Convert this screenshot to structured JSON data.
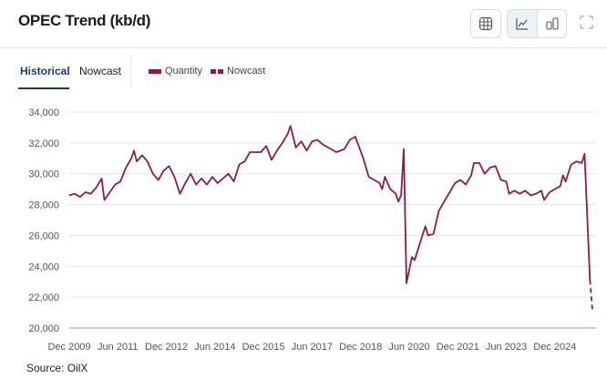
{
  "header": {
    "title": "OPEC Trend (kb/d)",
    "buttons": [
      {
        "icon": "table-icon"
      },
      {
        "icon": "line-chart-icon",
        "active": true
      },
      {
        "icon": "bar-chart-icon"
      },
      {
        "icon": "expand-icon"
      }
    ]
  },
  "tabs": [
    {
      "label": "Historical",
      "active": true
    },
    {
      "label": "Nowcast"
    }
  ],
  "legend": [
    {
      "label": "Quantity",
      "style": "solid"
    },
    {
      "label": "Nowcast",
      "style": "dashed"
    }
  ],
  "source": "Source: OilX",
  "colors": {
    "line": "#8e1b4c",
    "accent": "#1f3a6e"
  },
  "chart_data": {
    "type": "line",
    "ylim": [
      20000,
      34000
    ],
    "yticks": [
      20000,
      22000,
      24000,
      26000,
      28000,
      30000,
      32000,
      34000
    ],
    "ytick_labels": [
      "20,000",
      "22,000",
      "24,000",
      "26,000",
      "28,000",
      "30,000",
      "32,000",
      "34,000"
    ],
    "xtick_labels": [
      "Dec 2009",
      "Jun 2011",
      "Dec 2012",
      "Jun 2014",
      "Dec 2015",
      "Jun 2017",
      "Dec 2018",
      "Jun 2020",
      "Dec 2021",
      "Jun 2023",
      "Dec 2024"
    ],
    "xticks": [
      "2009-12",
      "2011-06",
      "2012-12",
      "2014-06",
      "2015-12",
      "2017-06",
      "2018-12",
      "2020-06",
      "2021-12",
      "2023-06",
      "2024-12"
    ],
    "grid": true,
    "series": [
      {
        "name": "Quantity",
        "style": "solid",
        "points": [
          [
            "2009-12",
            28600
          ],
          [
            "2010-02",
            28700
          ],
          [
            "2010-04",
            28500
          ],
          [
            "2010-06",
            28800
          ],
          [
            "2010-08",
            28700
          ],
          [
            "2010-10",
            29100
          ],
          [
            "2010-12",
            29700
          ],
          [
            "2011-01",
            28300
          ],
          [
            "2011-03",
            28800
          ],
          [
            "2011-05",
            29300
          ],
          [
            "2011-07",
            29500
          ],
          [
            "2011-09",
            30400
          ],
          [
            "2011-11",
            31000
          ],
          [
            "2011-12",
            31500
          ],
          [
            "2012-01",
            30800
          ],
          [
            "2012-03",
            31200
          ],
          [
            "2012-05",
            30800
          ],
          [
            "2012-07",
            30000
          ],
          [
            "2012-09",
            29600
          ],
          [
            "2012-11",
            30200
          ],
          [
            "2013-01",
            30500
          ],
          [
            "2013-03",
            29800
          ],
          [
            "2013-05",
            28700
          ],
          [
            "2013-07",
            29400
          ],
          [
            "2013-09",
            30000
          ],
          [
            "2013-11",
            29300
          ],
          [
            "2014-01",
            29700
          ],
          [
            "2014-03",
            29300
          ],
          [
            "2014-05",
            29800
          ],
          [
            "2014-07",
            29400
          ],
          [
            "2014-09",
            29700
          ],
          [
            "2014-11",
            30000
          ],
          [
            "2015-01",
            29500
          ],
          [
            "2015-03",
            30600
          ],
          [
            "2015-05",
            30800
          ],
          [
            "2015-07",
            31400
          ],
          [
            "2015-09",
            31400
          ],
          [
            "2015-11",
            31400
          ],
          [
            "2016-01",
            31800
          ],
          [
            "2016-03",
            30900
          ],
          [
            "2016-05",
            31500
          ],
          [
            "2016-07",
            32000
          ],
          [
            "2016-09",
            32600
          ],
          [
            "2016-10",
            33100
          ],
          [
            "2016-12",
            31700
          ],
          [
            "2017-02",
            32100
          ],
          [
            "2017-04",
            31500
          ],
          [
            "2017-06",
            32100
          ],
          [
            "2017-08",
            32200
          ],
          [
            "2017-10",
            31900
          ],
          [
            "2018-01",
            31600
          ],
          [
            "2018-03",
            31400
          ],
          [
            "2018-06",
            31600
          ],
          [
            "2018-08",
            32200
          ],
          [
            "2018-10",
            32400
          ],
          [
            "2019-01",
            31000
          ],
          [
            "2019-03",
            29800
          ],
          [
            "2019-05",
            29600
          ],
          [
            "2019-07",
            29400
          ],
          [
            "2019-08",
            29000
          ],
          [
            "2019-09",
            29800
          ],
          [
            "2019-11",
            29000
          ],
          [
            "2020-01",
            28700
          ],
          [
            "2020-02",
            28200
          ],
          [
            "2020-03",
            28600
          ],
          [
            "2020-04",
            31600
          ],
          [
            "2020-05",
            22900
          ],
          [
            "2020-07",
            24600
          ],
          [
            "2020-08",
            24400
          ],
          [
            "2020-10",
            25500
          ],
          [
            "2020-12",
            26600
          ],
          [
            "2021-01",
            26000
          ],
          [
            "2021-03",
            26100
          ],
          [
            "2021-05",
            27600
          ],
          [
            "2021-07",
            28200
          ],
          [
            "2021-09",
            28800
          ],
          [
            "2021-11",
            29400
          ],
          [
            "2022-01",
            29600
          ],
          [
            "2022-03",
            29300
          ],
          [
            "2022-05",
            29900
          ],
          [
            "2022-06",
            30700
          ],
          [
            "2022-08",
            30700
          ],
          [
            "2022-10",
            30000
          ],
          [
            "2022-12",
            30400
          ],
          [
            "2023-02",
            30500
          ],
          [
            "2023-04",
            29600
          ],
          [
            "2023-06",
            29500
          ],
          [
            "2023-07",
            28700
          ],
          [
            "2023-09",
            28900
          ],
          [
            "2023-11",
            28700
          ],
          [
            "2024-01",
            28900
          ],
          [
            "2024-03",
            28600
          ],
          [
            "2024-05",
            28700
          ],
          [
            "2024-07",
            28900
          ],
          [
            "2024-08",
            28300
          ],
          [
            "2024-10",
            28800
          ],
          [
            "2024-12",
            29000
          ],
          [
            "2025-02",
            29200
          ],
          [
            "2025-03",
            29900
          ],
          [
            "2025-04",
            29500
          ],
          [
            "2025-06",
            30600
          ],
          [
            "2025-08",
            30800
          ],
          [
            "2025-10",
            30700
          ],
          [
            "2025-11",
            31300
          ],
          [
            "2026-01",
            23100
          ]
        ]
      },
      {
        "name": "Nowcast",
        "style": "dashed",
        "points": [
          [
            "2026-01",
            23100
          ],
          [
            "2026-02",
            21000
          ]
        ]
      }
    ]
  }
}
